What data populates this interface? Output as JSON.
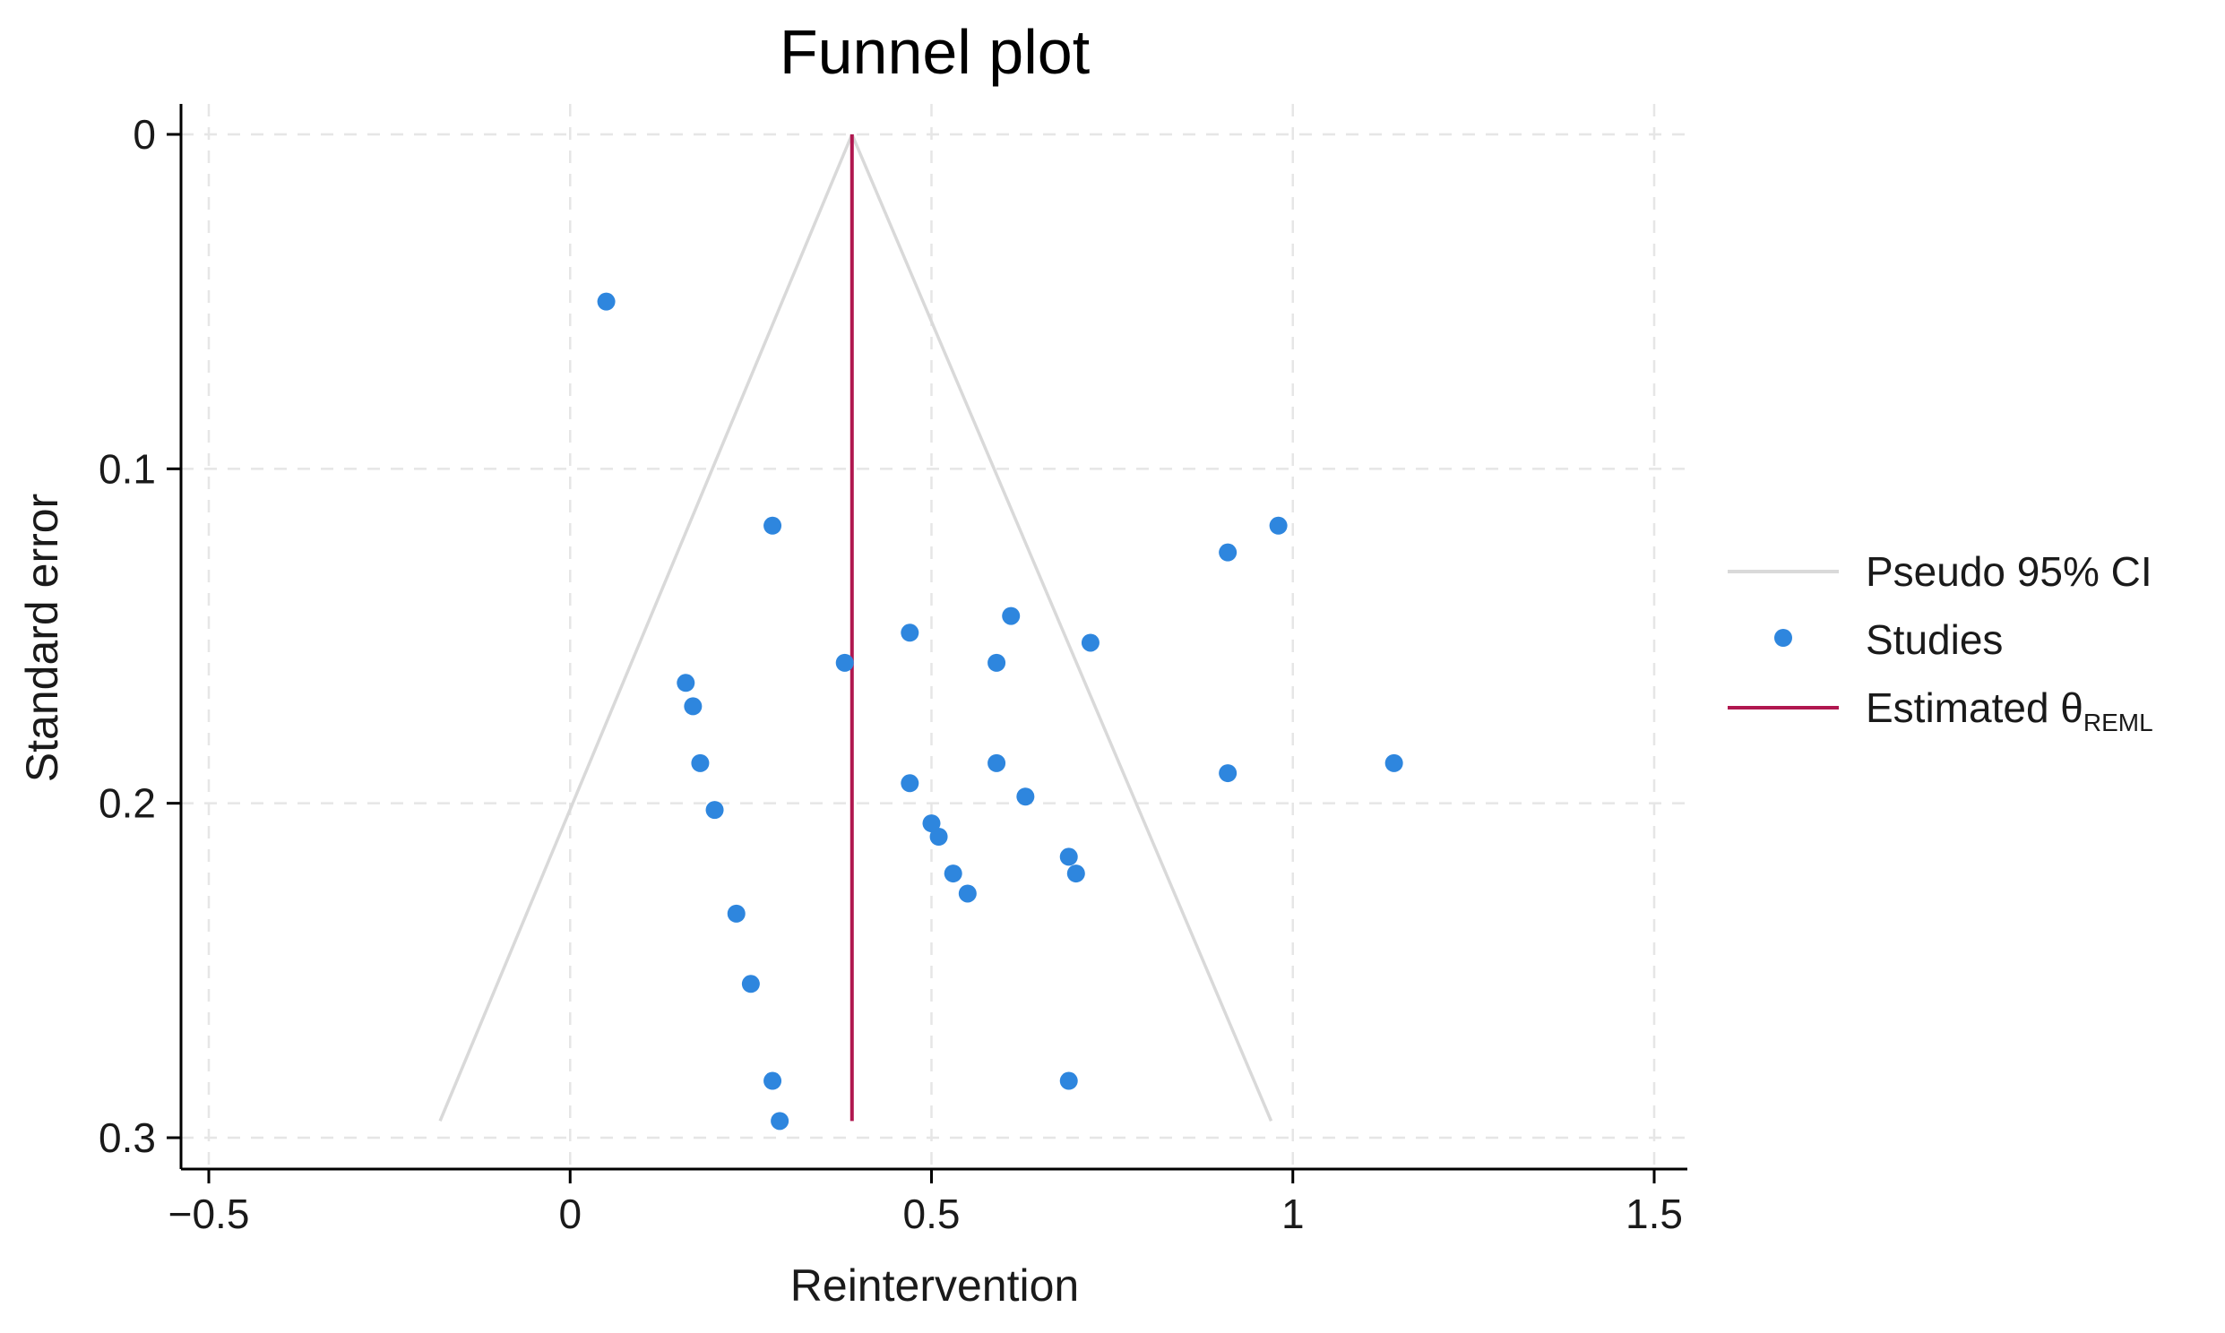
{
  "chart_data": {
    "type": "scatter",
    "title": "Funnel plot",
    "xlabel": "Reintervention",
    "ylabel": "Standard error",
    "xlim": [
      -0.55,
      1.55
    ],
    "ylim": [
      0,
      0.3
    ],
    "y_inverted": true,
    "xticks": [
      -0.5,
      0,
      0.5,
      1,
      1.5
    ],
    "xtick_labels": [
      "−0.5",
      "0",
      "0.5",
      "1",
      "1.5"
    ],
    "yticks": [
      0,
      0.1,
      0.2,
      0.3
    ],
    "ytick_labels": [
      "0",
      "0.1",
      "0.2",
      "0.3"
    ],
    "grid": true,
    "legend_position": "right",
    "estimate": 0.39,
    "funnel": {
      "apex": [
        0.39,
        0
      ],
      "left_bottom": [
        -0.18,
        0.295
      ],
      "right_bottom": [
        0.97,
        0.295
      ]
    },
    "estimate_line": {
      "x": 0.39,
      "y_range": [
        0,
        0.295
      ]
    },
    "series": [
      {
        "name": "Studies",
        "color": "#2e86de",
        "points": [
          [
            0.05,
            0.05
          ],
          [
            0.28,
            0.117
          ],
          [
            0.98,
            0.117
          ],
          [
            0.91,
            0.125
          ],
          [
            0.47,
            0.149
          ],
          [
            0.61,
            0.144
          ],
          [
            0.72,
            0.152
          ],
          [
            0.38,
            0.158
          ],
          [
            0.59,
            0.158
          ],
          [
            0.16,
            0.164
          ],
          [
            0.17,
            0.171
          ],
          [
            0.18,
            0.188
          ],
          [
            0.59,
            0.188
          ],
          [
            0.91,
            0.191
          ],
          [
            1.14,
            0.188
          ],
          [
            0.47,
            0.194
          ],
          [
            0.63,
            0.198
          ],
          [
            0.2,
            0.202
          ],
          [
            0.5,
            0.206
          ],
          [
            0.51,
            0.21
          ],
          [
            0.69,
            0.216
          ],
          [
            0.53,
            0.221
          ],
          [
            0.7,
            0.221
          ],
          [
            0.55,
            0.227
          ],
          [
            0.23,
            0.233
          ],
          [
            0.25,
            0.254
          ],
          [
            0.28,
            0.283
          ],
          [
            0.69,
            0.283
          ],
          [
            0.29,
            0.295
          ]
        ]
      }
    ],
    "legend": {
      "items": [
        {
          "label": "Pseudo 95% CI",
          "color": "#d9d9d9",
          "symbol": "line"
        },
        {
          "label": "Studies",
          "color": "#2e86de",
          "symbol": "dot"
        },
        {
          "label": "Estimated θ",
          "subscript": "REML",
          "color": "#b0174f",
          "symbol": "line"
        }
      ]
    },
    "colors": {
      "studies": "#2e86de",
      "estimate_line": "#b0174f",
      "ci_lines": "#d9d9d9"
    }
  }
}
